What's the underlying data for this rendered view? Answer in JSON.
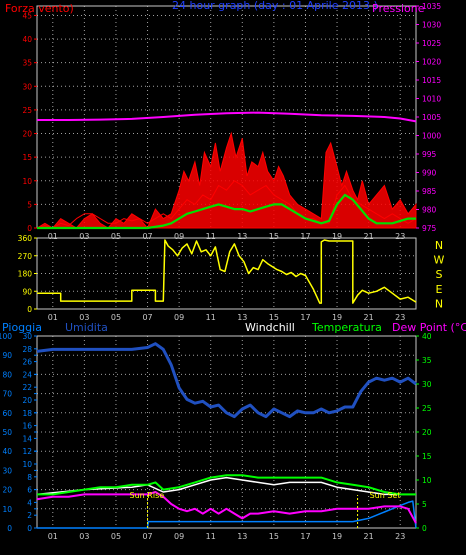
{
  "colors": {
    "background": "#000000",
    "frame": "#c8c8c8",
    "grid": "#c8c8c8",
    "tick_text": "#c8c8c8",
    "wind": "#ff0000",
    "gust_fill": "#ff0000",
    "avg_wind": "#00e000",
    "pressure": "#ff00ff",
    "direction": "#ffff00",
    "rain": "#0080ff",
    "humidity": "#2050c0",
    "windchill": "#ffffff",
    "temperature": "#00ff00",
    "dewpoint": "#ff00ff",
    "sun_marker": "#ffff00"
  },
  "chart_data": [
    {
      "id": "wind",
      "type": "line",
      "title": "24 hour graph (day : 01 Aprile 2013 )",
      "left_label": "Forza vento)",
      "right_label": "Pressione",
      "x_ticks": [
        "01",
        "03",
        "05",
        "07",
        "09",
        "11",
        "13",
        "15",
        "17",
        "19",
        "21",
        "23"
      ],
      "x_range": [
        0,
        24
      ],
      "left_axis": {
        "ticks": [
          0,
          5,
          10,
          15,
          20,
          25,
          30,
          35,
          40,
          45
        ],
        "ylim": [
          0,
          47
        ]
      },
      "right_axis": {
        "ticks": [
          975,
          980,
          985,
          990,
          995,
          1000,
          1005,
          1010,
          1015,
          1020,
          1025,
          1030,
          1035
        ],
        "ylim": [
          975,
          1035
        ]
      },
      "grid": true,
      "series": [
        {
          "key": "gust",
          "axis": "left",
          "style": "spikes",
          "x": [
            0.0,
            0.5,
            1.0,
            1.5,
            2.0,
            2.5,
            3.0,
            3.5,
            4.0,
            4.5,
            5.0,
            5.5,
            6.0,
            6.5,
            7.0,
            7.5,
            8.0,
            8.5,
            9.0,
            9.3,
            9.6,
            10.0,
            10.3,
            10.6,
            11.0,
            11.3,
            11.6,
            12.0,
            12.3,
            12.6,
            13.0,
            13.3,
            13.6,
            14.0,
            14.3,
            14.6,
            15.0,
            15.3,
            15.6,
            16.0,
            16.5,
            17.0,
            17.5,
            18.0,
            18.3,
            18.6,
            19.0,
            19.3,
            19.6,
            20.0,
            20.3,
            20.6,
            21.0,
            21.5,
            22.0,
            22.5,
            23.0,
            23.5,
            24.0
          ],
          "y": [
            0,
            1,
            0,
            2,
            1,
            0,
            2,
            3,
            1,
            0,
            2,
            1,
            3,
            2,
            0,
            4,
            2,
            3,
            8,
            12,
            10,
            14,
            9,
            16,
            13,
            18,
            12,
            17,
            20,
            15,
            19,
            11,
            14,
            13,
            16,
            12,
            10,
            13,
            11,
            7,
            5,
            4,
            3,
            2,
            16,
            18,
            13,
            9,
            12,
            8,
            6,
            10,
            5,
            7,
            9,
            4,
            6,
            3,
            5
          ]
        },
        {
          "key": "wind_speed",
          "axis": "left",
          "style": "line",
          "x": [
            0.0,
            0.5,
            1.0,
            1.5,
            2.0,
            2.5,
            3.0,
            3.5,
            4.0,
            4.5,
            5.0,
            5.5,
            6.0,
            6.5,
            7.0,
            7.5,
            8.0,
            8.5,
            9.0,
            9.5,
            10.0,
            10.5,
            11.0,
            11.5,
            12.0,
            12.5,
            13.0,
            13.5,
            14.0,
            14.5,
            15.0,
            15.5,
            16.0,
            16.5,
            17.0,
            17.5,
            18.0,
            18.5,
            19.0,
            19.5,
            20.0,
            20.5,
            21.0,
            21.5,
            22.0,
            22.5,
            23.0,
            23.5,
            24.0
          ],
          "y": [
            0,
            0.5,
            0,
            1,
            0.5,
            2,
            3,
            3,
            2,
            1,
            1,
            2,
            1.5,
            2,
            1,
            2,
            3,
            2,
            4,
            6,
            5,
            7,
            6,
            9,
            8,
            10,
            9,
            7,
            8,
            9,
            7,
            6,
            5,
            3,
            2,
            2,
            1,
            1,
            7,
            9,
            6,
            5,
            4,
            3,
            2,
            3,
            2,
            1,
            2
          ]
        },
        {
          "key": "avg_wind",
          "axis": "left",
          "style": "line",
          "x": [
            0,
            6,
            7,
            8,
            8.5,
            9,
            9.5,
            10,
            10.5,
            11,
            11.5,
            12,
            12.5,
            13,
            13.5,
            14,
            14.5,
            15,
            15.5,
            16,
            16.5,
            17,
            17.5,
            18,
            18.5,
            19,
            19.5,
            20,
            20.5,
            21,
            21.5,
            22,
            22.5,
            23,
            23.5,
            24
          ],
          "y": [
            0,
            0,
            0,
            0.5,
            1,
            2,
            3,
            3.5,
            4,
            4.5,
            5,
            4.5,
            4,
            4,
            3.5,
            4,
            4.5,
            5,
            5,
            4,
            3,
            2,
            1.5,
            1,
            1.5,
            5,
            7,
            6,
            4,
            2,
            1,
            1,
            1,
            1.5,
            2,
            2
          ]
        },
        {
          "key": "pressure",
          "axis": "right",
          "style": "line",
          "x": [
            0,
            2,
            4,
            6,
            8,
            10,
            12,
            14,
            16,
            18,
            20,
            22,
            23,
            24
          ],
          "y": [
            1004.2,
            1004.2,
            1004.3,
            1004.5,
            1005.0,
            1005.6,
            1006.0,
            1006.2,
            1005.9,
            1005.5,
            1005.3,
            1005.0,
            1004.6,
            1003.8
          ]
        }
      ]
    },
    {
      "id": "direction",
      "type": "line",
      "x_ticks": [
        "01",
        "03",
        "05",
        "07",
        "09",
        "11",
        "13",
        "15",
        "17",
        "19",
        "21",
        "23"
      ],
      "x_range": [
        0,
        24
      ],
      "left_axis": {
        "ticks": [
          0,
          90,
          180,
          270,
          360
        ],
        "ylim": [
          0,
          360
        ]
      },
      "compass_labels": [
        "N",
        "W",
        "S",
        "E",
        "N"
      ],
      "grid": true,
      "series": [
        {
          "key": "wind_dir",
          "axis": "left",
          "style": "line",
          "x": [
            0.0,
            1.5,
            1.5,
            3.0,
            6.0,
            6.0,
            7.5,
            7.5,
            8.0,
            8.1,
            8.3,
            8.6,
            8.9,
            9.2,
            9.5,
            9.8,
            10.1,
            10.4,
            10.7,
            11.0,
            11.3,
            11.6,
            11.9,
            12.2,
            12.5,
            12.8,
            13.1,
            13.4,
            13.7,
            14.0,
            14.3,
            14.6,
            14.9,
            15.2,
            15.5,
            15.8,
            16.1,
            16.4,
            16.7,
            17.0,
            17.5,
            17.9,
            18.0,
            18.0,
            18.2,
            18.5,
            19.0,
            19.5,
            20.0,
            20.0,
            20.3,
            20.6,
            21.0,
            21.5,
            22.0,
            22.5,
            23.0,
            23.5,
            24.0
          ],
          "y": [
            80,
            80,
            40,
            40,
            40,
            95,
            95,
            40,
            40,
            350,
            320,
            300,
            270,
            310,
            330,
            280,
            345,
            290,
            300,
            270,
            315,
            200,
            190,
            290,
            330,
            270,
            240,
            180,
            210,
            200,
            250,
            230,
            215,
            200,
            190,
            175,
            185,
            165,
            180,
            170,
            100,
            30,
            30,
            340,
            350,
            345,
            345,
            345,
            345,
            30,
            70,
            95,
            80,
            90,
            110,
            80,
            50,
            60,
            35
          ]
        }
      ]
    },
    {
      "id": "temp",
      "type": "line",
      "legend": [
        "Pioggia",
        "Umidita",
        "Windchill",
        "Temperatura",
        "Dew Point (°C)"
      ],
      "x_ticks": [
        "01",
        "03",
        "05",
        "07",
        "09",
        "11",
        "13",
        "15",
        "17",
        "19",
        "21",
        "23"
      ],
      "x_range": [
        0,
        24
      ],
      "left_axis": {
        "ticks": [
          0,
          10,
          20,
          30,
          40,
          50,
          60,
          70,
          80,
          90,
          100
        ],
        "ylim": [
          0,
          100
        ]
      },
      "left_axis2": {
        "ticks": [
          0,
          2,
          4,
          6,
          8,
          10,
          12,
          14,
          16,
          18,
          20,
          22,
          24,
          26,
          28,
          30
        ],
        "ylim": [
          0,
          30
        ]
      },
      "right_axis": {
        "ticks": [
          0,
          5,
          10,
          15,
          20,
          25,
          30,
          35,
          40
        ],
        "ylim": [
          0,
          40
        ]
      },
      "annotations": [
        {
          "label": "Sun Rise",
          "x": 7.0
        },
        {
          "label": "Sun Set",
          "x": 20.3
        }
      ],
      "grid": true,
      "series": [
        {
          "key": "rain",
          "axis": "left2",
          "style": "line",
          "x": [
            0,
            7,
            7.05,
            20,
            21,
            22,
            23,
            23.5,
            23.8,
            24
          ],
          "y": [
            0,
            0,
            1,
            1,
            1.5,
            2.5,
            3.5,
            4,
            4.2,
            0
          ]
        },
        {
          "key": "humidity",
          "axis": "left",
          "style": "line",
          "x": [
            0,
            1,
            2,
            3,
            4,
            5,
            6,
            7,
            7.5,
            8,
            8.5,
            9,
            9.5,
            10,
            10.5,
            11,
            11.5,
            12,
            12.5,
            13,
            13.5,
            14,
            14.5,
            15,
            15.5,
            16,
            16.5,
            17,
            17.5,
            18,
            18.5,
            19,
            19.5,
            20,
            20.5,
            21,
            21.5,
            22,
            22.5,
            23,
            23.5,
            24
          ],
          "y": [
            92,
            93,
            93,
            93,
            93,
            93,
            93,
            94,
            96,
            93,
            85,
            73,
            67,
            65,
            66,
            63,
            64,
            60,
            58,
            62,
            64,
            60,
            58,
            62,
            60,
            58,
            61,
            60,
            60,
            62,
            60,
            61,
            63,
            63,
            71,
            76,
            78,
            77,
            78,
            76,
            78,
            75
          ]
        },
        {
          "key": "windchill",
          "axis": "right",
          "style": "line",
          "x": [
            0,
            3,
            6,
            7,
            8,
            9,
            10,
            11,
            12,
            13,
            14,
            15,
            16,
            17,
            18,
            19,
            20,
            21,
            22,
            23,
            24
          ],
          "y": [
            7,
            8,
            8.5,
            9,
            7.5,
            8,
            9,
            10,
            10.5,
            10,
            9.5,
            9,
            9.5,
            9.5,
            9.5,
            8.5,
            8,
            7.5,
            7,
            7,
            7
          ]
        },
        {
          "key": "temperature",
          "axis": "right",
          "style": "line",
          "x": [
            0,
            1,
            2,
            3,
            4,
            5,
            6,
            7,
            7.5,
            8,
            9,
            10,
            11,
            12,
            13,
            14,
            15,
            16,
            17,
            18,
            19,
            20,
            21,
            22,
            23,
            24
          ],
          "y": [
            7,
            7,
            7.5,
            8,
            8.5,
            8.5,
            9,
            9,
            9.5,
            8,
            8.5,
            9.5,
            10.5,
            11,
            11,
            10.5,
            10.5,
            10.5,
            10.5,
            10.5,
            9.5,
            9,
            8.5,
            7.5,
            7,
            7
          ]
        },
        {
          "key": "dewpoint",
          "axis": "right",
          "style": "line",
          "x": [
            0,
            1,
            2,
            3,
            4,
            5,
            6,
            7,
            7.5,
            8,
            8.5,
            9,
            9.5,
            10,
            10.5,
            11,
            11.5,
            12,
            12.5,
            13,
            13.5,
            14,
            15,
            16,
            17,
            18,
            19,
            20,
            21,
            22,
            23,
            23.5,
            24
          ],
          "y": [
            6,
            6.5,
            6.5,
            7,
            7,
            7,
            7,
            7,
            7.5,
            6.5,
            5,
            4,
            3.5,
            4,
            3,
            4,
            3,
            4,
            3,
            2,
            3,
            3,
            3.5,
            3,
            3.5,
            3.5,
            4,
            4,
            4,
            4.5,
            4.5,
            4,
            1
          ]
        }
      ]
    }
  ]
}
